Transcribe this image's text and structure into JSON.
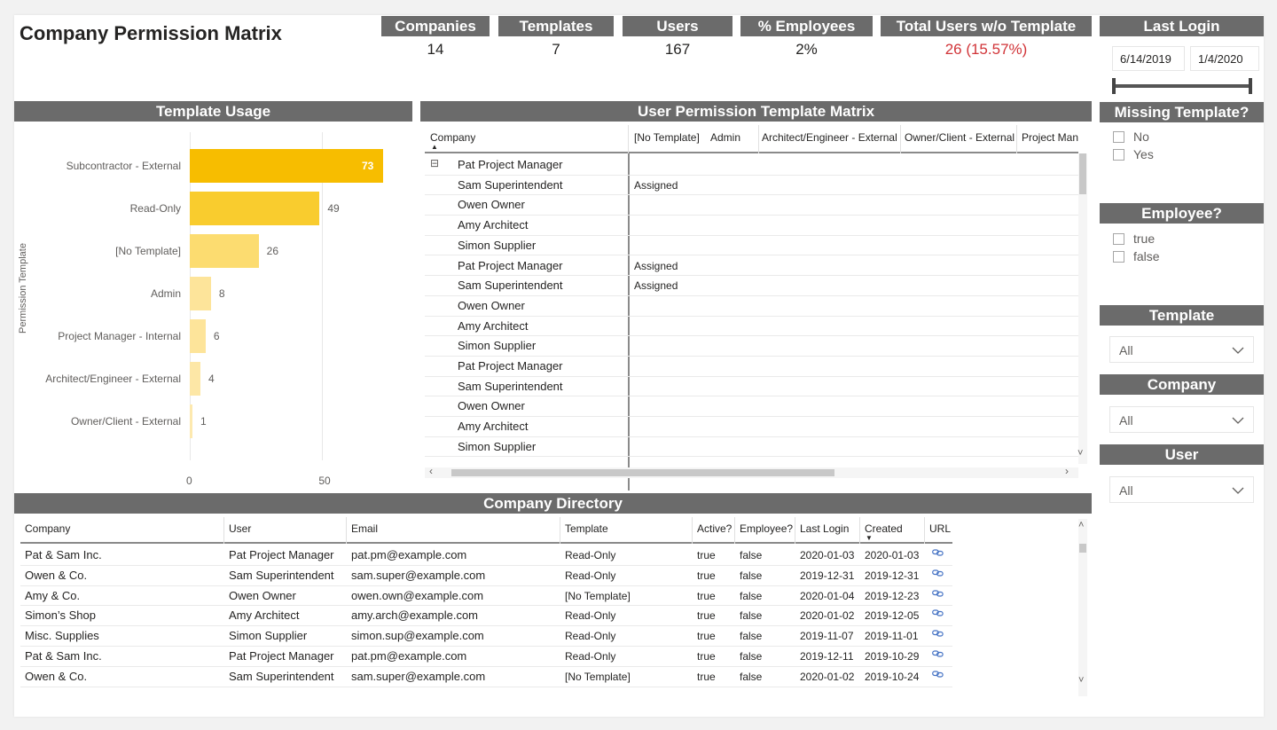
{
  "title": "Company Permission Matrix",
  "kpis": [
    {
      "label": "Companies",
      "value": "14"
    },
    {
      "label": "Templates",
      "value": "7"
    },
    {
      "label": "Users",
      "value": "167"
    },
    {
      "label": "% Employees",
      "value": "2%"
    },
    {
      "label": "Total Users w/o Template",
      "value": "26 (15.57%)"
    }
  ],
  "last_login": {
    "title": "Last Login",
    "start": "6/14/2019",
    "end": "1/4/2020"
  },
  "missing_template": {
    "title": "Missing Template?",
    "options": [
      "No",
      "Yes"
    ]
  },
  "employee": {
    "title": "Employee?",
    "options": [
      "true",
      "false"
    ]
  },
  "template_filter": {
    "title": "Template",
    "value": "All"
  },
  "company_filter": {
    "title": "Company",
    "value": "All"
  },
  "user_filter": {
    "title": "User",
    "value": "All"
  },
  "chart_data": {
    "type": "bar",
    "orientation": "horizontal",
    "title": "Template Usage",
    "ylabel": "Permission Template",
    "xlabel": "",
    "categories": [
      "Subcontractor - External",
      "Read-Only",
      "[No Template]",
      "Admin",
      "Project Manager - Internal",
      "Architect/Engineer - External",
      "Owner/Client - External"
    ],
    "values": [
      73,
      49,
      26,
      8,
      6,
      4,
      1
    ],
    "colors": [
      "#f7bd00",
      "#f9cc2e",
      "#fcdc70",
      "#fde49a",
      "#fde49a",
      "#fde7a6",
      "#fde9af"
    ],
    "xlim": [
      0,
      73
    ],
    "xticks": [
      "0",
      "50"
    ]
  },
  "matrix": {
    "title": "User Permission Template Matrix",
    "columns": [
      "Company",
      "[No Template]",
      "Admin",
      "Architect/Engineer - External",
      "Owner/Client - External",
      "Project Mana"
    ],
    "expand_icon": "⊟",
    "rows": [
      {
        "name": "Pat Project Manager",
        "value": ""
      },
      {
        "name": "Sam Superintendent",
        "value": "Assigned"
      },
      {
        "name": "Owen Owner",
        "value": ""
      },
      {
        "name": "Amy Architect",
        "value": ""
      },
      {
        "name": "Simon Supplier",
        "value": ""
      },
      {
        "name": "Pat Project Manager",
        "value": "Assigned"
      },
      {
        "name": "Sam Superintendent",
        "value": "Assigned"
      },
      {
        "name": "Owen Owner",
        "value": ""
      },
      {
        "name": "Amy Architect",
        "value": ""
      },
      {
        "name": "Simon Supplier",
        "value": ""
      },
      {
        "name": "Pat Project Manager",
        "value": ""
      },
      {
        "name": "Sam Superintendent",
        "value": ""
      },
      {
        "name": "Owen Owner",
        "value": ""
      },
      {
        "name": "Amy Architect",
        "value": ""
      },
      {
        "name": "Simon Supplier",
        "value": ""
      }
    ]
  },
  "directory": {
    "title": "Company Directory",
    "columns": [
      "Company",
      "User",
      "Email",
      "Template",
      "Active?",
      "Employee?",
      "Last Login",
      "Created",
      "URL"
    ],
    "rows": [
      [
        "Pat & Sam Inc.",
        "Pat Project Manager",
        "pat.pm@example.com",
        "Read-Only",
        "true",
        "false",
        "2020-01-03",
        "2020-01-03"
      ],
      [
        "Owen & Co.",
        "Sam Superintendent",
        "sam.super@example.com",
        "Read-Only",
        "true",
        "false",
        "2019-12-31",
        "2019-12-31"
      ],
      [
        "Amy & Co.",
        "Owen Owner",
        "owen.own@example.com",
        "[No Template]",
        "true",
        "false",
        "2020-01-04",
        "2019-12-23"
      ],
      [
        "Simon’s Shop",
        "Amy Architect",
        "amy.arch@example.com",
        "Read-Only",
        "true",
        "false",
        "2020-01-02",
        "2019-12-05"
      ],
      [
        "Misc. Supplies",
        "Simon Supplier",
        "simon.sup@example.com",
        "Read-Only",
        "true",
        "false",
        "2019-11-07",
        "2019-11-01"
      ],
      [
        "Pat & Sam Inc.",
        "Pat Project Manager",
        "pat.pm@example.com",
        "Read-Only",
        "true",
        "false",
        "2019-12-11",
        "2019-10-29"
      ],
      [
        "Owen & Co.",
        "Sam Superintendent",
        "sam.super@example.com",
        "[No Template]",
        "true",
        "false",
        "2020-01-02",
        "2019-10-24"
      ]
    ]
  }
}
